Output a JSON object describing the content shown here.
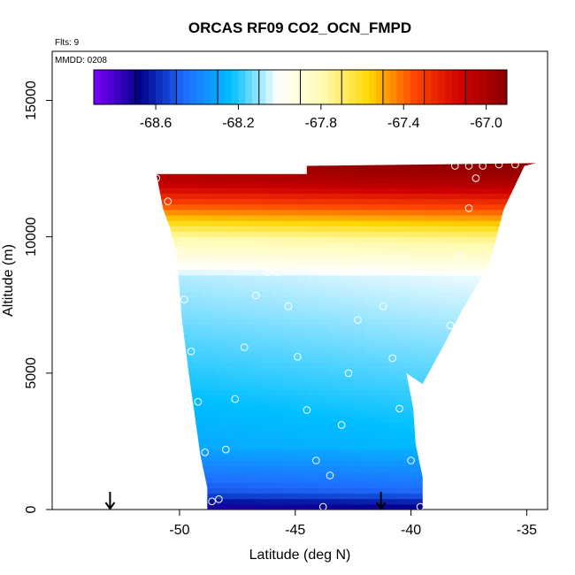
{
  "chart_data": {
    "type": "heatmap",
    "title": "ORCAS RF09 CO2_OCN_FMPD",
    "annotations": {
      "flights": "Flts: 9",
      "date": "MMDD: 0208"
    },
    "xlabel": "Latitude (deg N)",
    "ylabel": "Altitude (m)",
    "xlim": [
      -55.5,
      -34.1
    ],
    "ylim": [
      0,
      16800
    ],
    "x_ticks": [
      -50,
      -45,
      -40,
      -35
    ],
    "x_tick_labels": [
      "-50",
      "-45",
      "-40",
      "-35"
    ],
    "y_ticks": [
      0,
      5000,
      10000,
      15000
    ],
    "y_tick_labels": [
      "0",
      "5000",
      "10000",
      "15000"
    ],
    "colorbar": {
      "min": -68.9,
      "max": -66.9,
      "ticks": [
        -68.6,
        -68.2,
        -67.8,
        -67.4,
        -67.0
      ],
      "tick_labels": [
        "-68.6",
        "-68.2",
        "-67.8",
        "-67.4",
        "-67.0"
      ],
      "divisions": [
        -68.7,
        -68.5,
        -68.3,
        -68.1,
        -67.9,
        -67.7,
        -67.5,
        -67.3,
        -67.1,
        -66.9
      ],
      "colors": [
        "#7f00ff",
        "#00008b",
        "#1f6fff",
        "#00bfff",
        "#ffffff",
        "#fffbb0",
        "#ffd700",
        "#ff4500",
        "#d00000",
        "#8b0000"
      ]
    },
    "curtain": {
      "left_edge": [
        [
          -48.8,
          0
        ],
        [
          -48.8,
          800
        ],
        [
          -49.1,
          2000
        ],
        [
          -49.4,
          3800
        ],
        [
          -49.6,
          5000
        ],
        [
          -49.9,
          7000
        ],
        [
          -50.1,
          9200
        ],
        [
          -50.4,
          10300
        ],
        [
          -50.7,
          11000
        ],
        [
          -51.0,
          12300
        ]
      ],
      "right_edge": [
        [
          -39.5,
          0
        ],
        [
          -39.5,
          1200
        ],
        [
          -39.8,
          2400
        ],
        [
          -39.9,
          3700
        ],
        [
          -40.2,
          5000
        ],
        [
          -39.5,
          4600
        ],
        [
          -38.6,
          6000
        ],
        [
          -37.8,
          7300
        ],
        [
          -36.6,
          9000
        ],
        [
          -36.0,
          11000
        ],
        [
          -35.1,
          12600
        ],
        [
          -34.6,
          12700
        ]
      ],
      "top_left": [
        -51.0,
        12300
      ],
      "top_mid": [
        -44.5,
        12300
      ],
      "top_step": [
        -44.5,
        12600
      ],
      "top_right": [
        -34.6,
        12700
      ]
    },
    "flight_points": [
      [
        -51.0,
        12150
      ],
      [
        -50.5,
        11300
      ],
      [
        -50.0,
        9500
      ],
      [
        -49.8,
        7700
      ],
      [
        -49.5,
        5800
      ],
      [
        -49.2,
        3950
      ],
      [
        -48.9,
        2100
      ],
      [
        -48.6,
        300
      ],
      [
        -48.3,
        380
      ],
      [
        -48.0,
        2200
      ],
      [
        -47.6,
        4050
      ],
      [
        -47.2,
        5950
      ],
      [
        -46.7,
        7850
      ],
      [
        -46.2,
        8700
      ],
      [
        -45.8,
        8700
      ],
      [
        -45.3,
        7450
      ],
      [
        -44.9,
        5600
      ],
      [
        -44.5,
        3650
      ],
      [
        -44.1,
        1800
      ],
      [
        -43.8,
        100
      ],
      [
        -43.5,
        1250
      ],
      [
        -43.0,
        3100
      ],
      [
        -42.7,
        5000
      ],
      [
        -42.3,
        6950
      ],
      [
        -41.9,
        8800
      ],
      [
        -41.5,
        8850
      ],
      [
        -41.2,
        7450
      ],
      [
        -40.8,
        5550
      ],
      [
        -40.5,
        3700
      ],
      [
        -40.0,
        1800
      ],
      [
        -39.6,
        100
      ],
      [
        -39.0,
        2950
      ],
      [
        -38.7,
        4850
      ],
      [
        -38.3,
        6750
      ],
      [
        -37.9,
        9300
      ],
      [
        -37.5,
        11050
      ],
      [
        -37.2,
        12150
      ],
      [
        -38.1,
        12600
      ],
      [
        -37.5,
        12600
      ],
      [
        -36.9,
        12600
      ],
      [
        -36.2,
        12650
      ],
      [
        -35.5,
        12650
      ]
    ],
    "markers": [
      {
        "type": "arrow-down",
        "x": -53.0,
        "y_top": 620,
        "y_bottom": 0
      },
      {
        "type": "arrow-down",
        "x": -41.3,
        "y_top": 620,
        "y_bottom": 0
      }
    ]
  }
}
